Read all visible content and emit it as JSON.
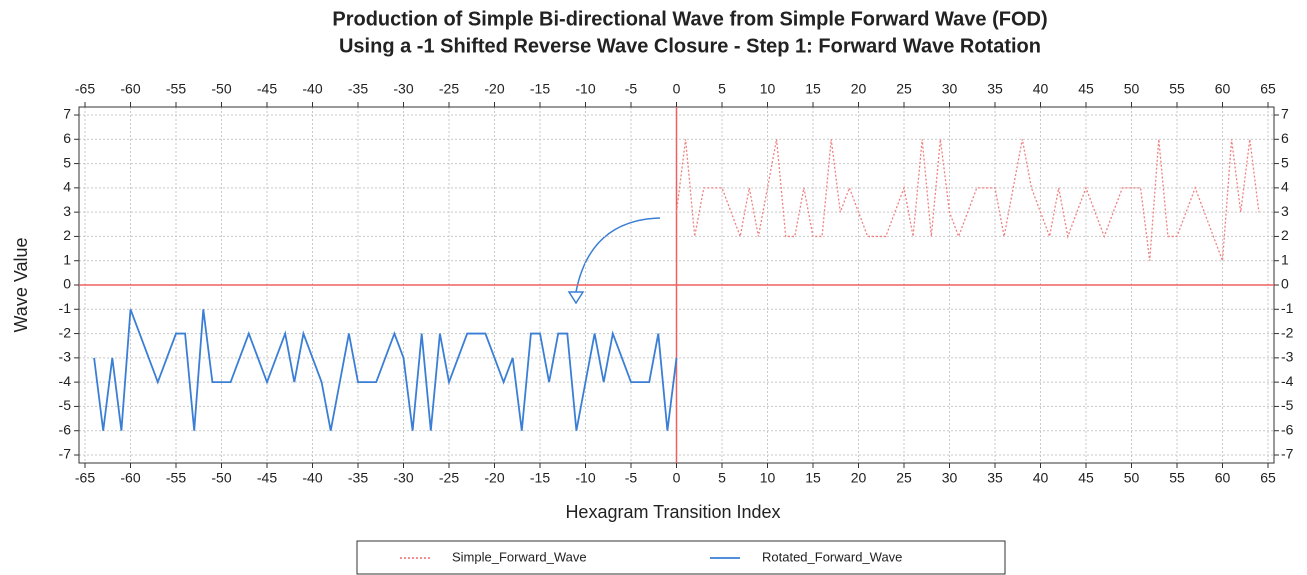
{
  "chart_data": {
    "type": "line",
    "title": [
      "Production of Simple Bi-directional Wave from Simple Forward Wave (FOD)",
      "Using a -1 Shifted Reverse Wave Closure - Step 1: Forward Wave Rotation"
    ],
    "xlabel": "Hexagram Transition Index",
    "ylabel": "Wave Value",
    "xlim": [
      -65,
      65
    ],
    "ylim": [
      -7,
      7
    ],
    "xticks": [
      -65,
      -60,
      -55,
      -50,
      -45,
      -40,
      -35,
      -30,
      -25,
      -20,
      -15,
      -10,
      -5,
      0,
      5,
      10,
      15,
      20,
      25,
      30,
      35,
      40,
      45,
      50,
      55,
      60,
      65
    ],
    "yticks": [
      -7,
      -6,
      -5,
      -4,
      -3,
      -2,
      -1,
      0,
      1,
      2,
      3,
      4,
      5,
      6,
      7
    ],
    "grid": true,
    "legend": "bottom",
    "series": [
      {
        "name": "Simple_Forward_Wave",
        "color": "#f08080",
        "dash": true,
        "x": [
          0,
          1,
          2,
          3,
          4,
          5,
          6,
          7,
          8,
          9,
          10,
          11,
          12,
          13,
          14,
          15,
          16,
          17,
          18,
          19,
          20,
          21,
          22,
          23,
          24,
          25,
          26,
          27,
          28,
          29,
          30,
          31,
          32,
          33,
          34,
          35,
          36,
          37,
          38,
          39,
          40,
          41,
          42,
          43,
          44,
          45,
          46,
          47,
          48,
          49,
          50,
          51,
          52,
          53,
          54,
          55,
          56,
          57,
          58,
          59,
          60,
          61,
          62,
          63,
          64
        ],
        "values": [
          3,
          6,
          2,
          4,
          4,
          4,
          3,
          2,
          4,
          2,
          4,
          6,
          2,
          2,
          4,
          2,
          2,
          6,
          3,
          4,
          3,
          2,
          2,
          2,
          3,
          4,
          2,
          6,
          2,
          6,
          3,
          2,
          3,
          4,
          4,
          4,
          2,
          4,
          6,
          4,
          3,
          2,
          4,
          2,
          3,
          4,
          3,
          2,
          3,
          4,
          4,
          4,
          1,
          6,
          2,
          2,
          3,
          4,
          3,
          2,
          1,
          6,
          3,
          6,
          3
        ]
      },
      {
        "name": "Rotated_Forward_Wave",
        "color": "#3a7fd5",
        "dash": false,
        "x": [
          -64,
          -63,
          -62,
          -61,
          -60,
          -59,
          -58,
          -57,
          -56,
          -55,
          -54,
          -53,
          -52,
          -51,
          -50,
          -49,
          -48,
          -47,
          -46,
          -45,
          -44,
          -43,
          -42,
          -41,
          -40,
          -39,
          -38,
          -37,
          -36,
          -35,
          -34,
          -33,
          -32,
          -31,
          -30,
          -29,
          -28,
          -27,
          -26,
          -25,
          -24,
          -23,
          -22,
          -21,
          -20,
          -19,
          -18,
          -17,
          -16,
          -15,
          -14,
          -13,
          -12,
          -11,
          -10,
          -9,
          -8,
          -7,
          -6,
          -5,
          -4,
          -3,
          -2,
          -1,
          0
        ],
        "values": [
          -3,
          -6,
          -3,
          -6,
          -1,
          -2,
          -3,
          -4,
          -3,
          -2,
          -2,
          -6,
          -1,
          -4,
          -4,
          -4,
          -3,
          -2,
          -3,
          -4,
          -3,
          -2,
          -4,
          -2,
          -3,
          -4,
          -6,
          -4,
          -2,
          -4,
          -4,
          -4,
          -3,
          -2,
          -3,
          -6,
          -2,
          -6,
          -2,
          -4,
          -3,
          -2,
          -2,
          -2,
          -3,
          -4,
          -3,
          -6,
          -2,
          -2,
          -4,
          -2,
          -2,
          -6,
          -4,
          -2,
          -4,
          -2,
          -3,
          -4,
          -4,
          -4,
          -2,
          -6,
          -3
        ]
      }
    ]
  }
}
